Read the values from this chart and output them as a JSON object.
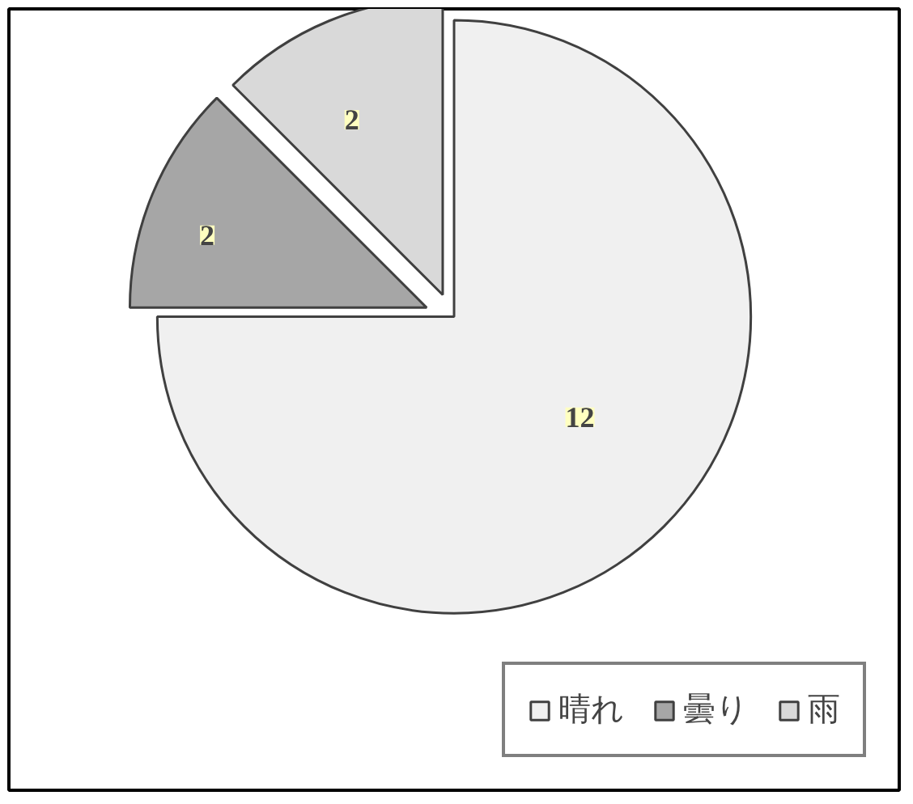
{
  "chart_data": {
    "type": "pie",
    "categories": [
      "晴れ",
      "曇り",
      "雨"
    ],
    "values": [
      12,
      2,
      2
    ],
    "colors": [
      "#f0f0f0",
      "#a6a6a6",
      "#d9d9d9"
    ],
    "data_labels": true,
    "legend": "bottom right"
  }
}
